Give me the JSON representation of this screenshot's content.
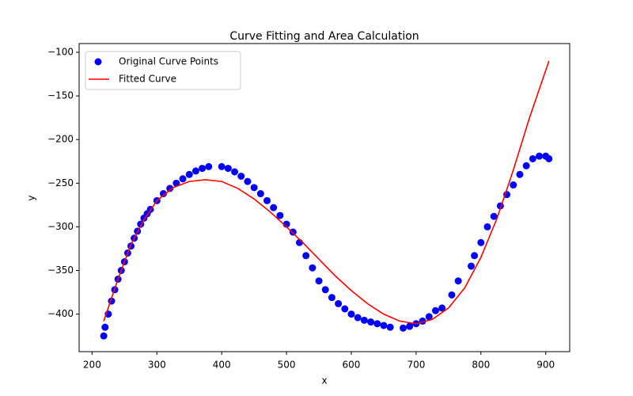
{
  "chart_data": {
    "type": "scatter",
    "title": "Curve Fitting and Area Calculation",
    "x_label": "x",
    "y_label": "y",
    "xlim": [
      180,
      937
    ],
    "ylim": [
      -443,
      -90
    ],
    "xticks": [
      200,
      300,
      400,
      500,
      600,
      700,
      800,
      900
    ],
    "yticks": [
      {
        "value": -400,
        "label": "−400"
      },
      {
        "value": -350,
        "label": "−350"
      },
      {
        "value": -300,
        "label": "−300"
      },
      {
        "value": -250,
        "label": "−250"
      },
      {
        "value": -200,
        "label": "−200"
      },
      {
        "value": -150,
        "label": "−150"
      },
      {
        "value": -100,
        "label": "−100"
      }
    ],
    "legend": "upper left",
    "series": [
      {
        "name": "Original Curve Points",
        "color": "#0000ff",
        "type": "scatter",
        "x": [
          218,
          220,
          225,
          230,
          235,
          240,
          245,
          250,
          255,
          260,
          265,
          270,
          275,
          280,
          285,
          290,
          300,
          310,
          320,
          330,
          340,
          350,
          360,
          370,
          380,
          400,
          410,
          420,
          430,
          440,
          450,
          460,
          470,
          480,
          490,
          500,
          510,
          520,
          530,
          540,
          550,
          560,
          570,
          580,
          590,
          600,
          610,
          620,
          630,
          640,
          650,
          660,
          680,
          690,
          700,
          710,
          720,
          730,
          740,
          755,
          765,
          785,
          790,
          800,
          810,
          820,
          830,
          840,
          850,
          860,
          870,
          880,
          890,
          900,
          905
        ],
        "values": [
          -425,
          -415,
          -400,
          -385,
          -372,
          -360,
          -350,
          -340,
          -330,
          -322,
          -313,
          -305,
          -297,
          -290,
          -285,
          -280,
          -270,
          -262,
          -256,
          -250,
          -245,
          -240,
          -236,
          -233,
          -231,
          -231,
          -233,
          -237,
          -242,
          -248,
          -255,
          -262,
          -270,
          -278,
          -287,
          -297,
          -306,
          -318,
          -333,
          -347,
          -362,
          -372,
          -381,
          -388,
          -394,
          -400,
          -404,
          -407,
          -409,
          -411,
          -413,
          -415,
          -416,
          -414,
          -411,
          -408,
          -403,
          -396,
          -393,
          -378,
          -362,
          -345,
          -333,
          -318,
          -300,
          -288,
          -276,
          -263,
          -252,
          -240,
          -230,
          -222,
          -219,
          -219,
          -222
        ]
      },
      {
        "name": "Fitted Curve",
        "color": "#ff0000",
        "type": "line",
        "x": [
          218,
          240,
          260,
          280,
          300,
          325,
          350,
          375,
          400,
          425,
          450,
          475,
          500,
          525,
          550,
          575,
          600,
          625,
          650,
          675,
          700,
          725,
          750,
          775,
          800,
          825,
          850,
          875,
          905
        ],
        "values": [
          -408,
          -360,
          -320,
          -292,
          -270,
          -255,
          -248,
          -246,
          -248,
          -256,
          -268,
          -283,
          -300,
          -318,
          -337,
          -356,
          -373,
          -388,
          -400,
          -408,
          -411,
          -406,
          -393,
          -370,
          -335,
          -290,
          -235,
          -175,
          -110
        ]
      }
    ]
  }
}
